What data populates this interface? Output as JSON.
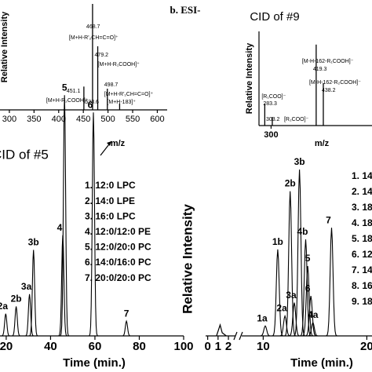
{
  "chart_data": [
    {
      "type": "spectrum",
      "ylabel": "Relative Intensity",
      "xlabel": "m/z",
      "x": [
        451.1,
        468.7,
        479.2,
        498.7,
        523.6
      ],
      "values": [
        22,
        100,
        60,
        20,
        6
      ],
      "annotations": [
        "[M+H-R₂COOH]⁺",
        "[M+H-R'₂CH=C=O]⁺",
        "[M+H-R₁COOH]⁺",
        "[M+H-R'₁CH=C=O]⁺",
        "[M+H-183]⁺"
      ],
      "xlim": [
        281,
        620
      ],
      "ylim": [
        0,
        100
      ],
      "xticks": [
        300,
        350,
        400,
        450,
        500,
        550,
        600
      ],
      "callout": "CID of #5"
    },
    {
      "type": "spectrum",
      "title": "CID of #9",
      "ylabel": "Relative Intensity",
      "xlabel": "m/z",
      "x": [
        283.3,
        303.2,
        419.3,
        438.2
      ],
      "values": [
        23,
        9,
        86,
        45
      ],
      "annotations": [
        "[R₁COO]⁻",
        "[R₂COO]⁻",
        "[M-H-162-R₁COOH]⁻",
        "[M-H-162-R₂COOH]⁻"
      ],
      "xlim": [
        268,
        567
      ],
      "ylim": [
        0,
        100
      ],
      "xticks": [
        300
      ]
    },
    {
      "type": "chromatogram",
      "xlabel": "Time (min.)",
      "peaks": [
        "2a",
        "2b",
        "3a",
        "3b",
        "4",
        "5",
        "6",
        "7"
      ],
      "x": [
        19.8,
        24.5,
        30.5,
        32.3,
        45.5,
        46.3,
        59.3,
        74.2
      ],
      "values": [
        9,
        12,
        17,
        35,
        41,
        98,
        91,
        6
      ],
      "legend": [
        "1. 12:0 LPC",
        "2. 14:0 LPE",
        "3. 16:0 LPC",
        "4. 12:0/12:0 PE",
        "5. 12:0/20:0 PC",
        "6. 14:0/16:0 PC",
        "7. 20:0/20:0 PC"
      ],
      "xlim": [
        17.2,
        100
      ],
      "ylim": [
        0,
        100
      ],
      "xticks": [
        20,
        40,
        60,
        80,
        100
      ]
    },
    {
      "type": "chromatogram",
      "title": "b. ESI-",
      "xlabel": "Time (min.)",
      "ylabel": "Relative Intensity",
      "peaks": [
        "1a",
        "1b",
        "2a",
        "2b",
        "3a",
        "3b",
        "4b",
        "5",
        "6",
        "4a",
        "7"
      ],
      "x": [
        10.2,
        11.4,
        12.1,
        12.6,
        13.0,
        13.5,
        14.1,
        14.3,
        14.6,
        14.8,
        16.6
      ],
      "values": [
        6,
        52,
        12,
        87,
        20,
        100,
        58,
        42,
        24,
        8,
        65
      ],
      "legend": [
        "1. 14",
        "2. 14",
        "3. 18",
        "4. 18",
        "5. 18",
        "6. 12",
        "7. 14",
        "8. 16",
        "9. 18"
      ],
      "xlim": [
        -0.2,
        20.5
      ],
      "xbreak": [
        2.6,
        8
      ],
      "ylim": [
        0,
        100
      ],
      "xticks": [
        0,
        1,
        2,
        10,
        20
      ]
    }
  ]
}
